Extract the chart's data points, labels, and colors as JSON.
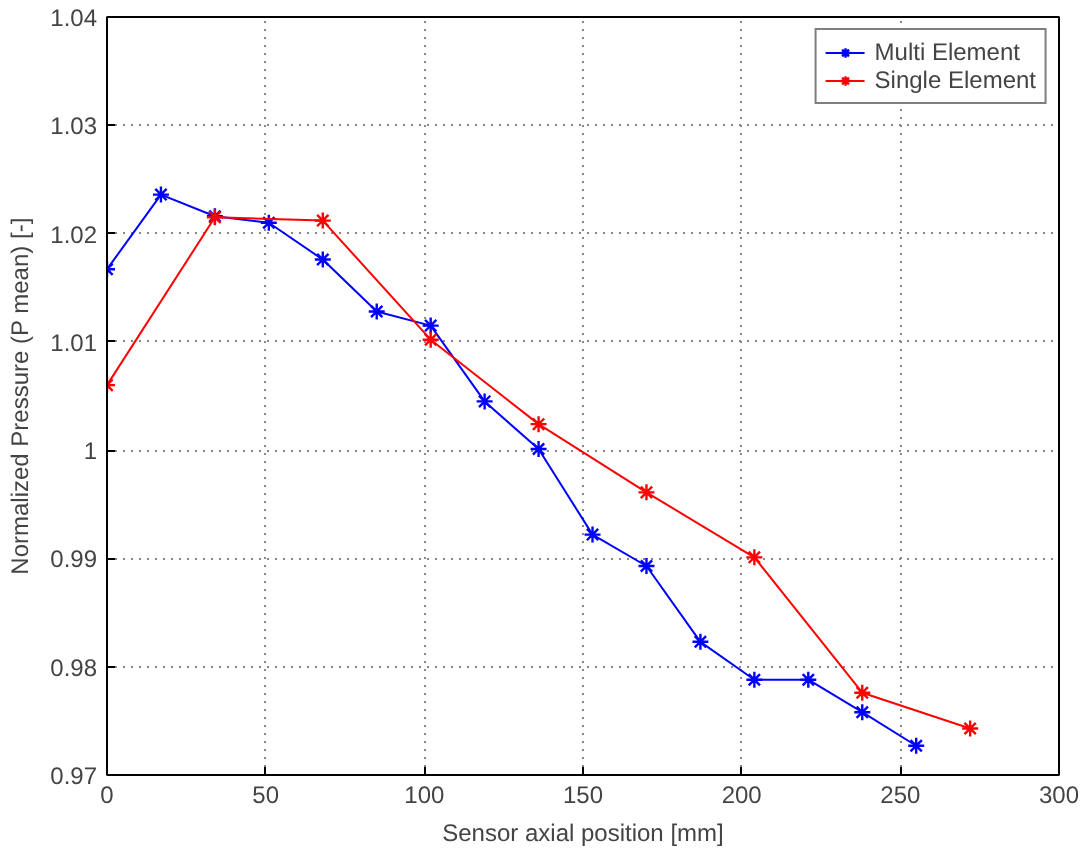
{
  "chart_data": {
    "type": "line",
    "xlabel": "Sensor axial position [mm]",
    "ylabel": "Normalized Pressure (P mean) [-]",
    "xlim": [
      0,
      300
    ],
    "xticks": [
      0,
      50,
      100,
      150,
      200,
      250,
      300
    ],
    "ylim": [
      0.97,
      1.04
    ],
    "yticks": [
      0.97,
      0.98,
      0.99,
      1,
      1.01,
      1.02,
      1.03,
      1.04
    ],
    "grid": true,
    "legend": "top right",
    "marker": "cross",
    "line_style": "solid",
    "series": [
      {
        "name": "Multi Element",
        "color": "#0000ff",
        "x": [
          0,
          17,
          34,
          51,
          68,
          85,
          102,
          119,
          136,
          153,
          170,
          187,
          204,
          221,
          238,
          255
        ],
        "values": [
          1.0167,
          1.0236,
          1.0216,
          1.021,
          1.0176,
          1.0128,
          1.0115,
          1.0045,
          1.0001,
          0.9922,
          0.9893,
          0.9823,
          0.9788,
          0.9788,
          0.9758,
          0.9727
        ]
      },
      {
        "name": "Single Element",
        "color": "#ff0000",
        "x": [
          0,
          34,
          68,
          102,
          136,
          170,
          204,
          238,
          272
        ],
        "values": [
          1.006,
          1.0215,
          1.0212,
          1.0102,
          1.0024,
          0.9961,
          0.9901,
          0.9776,
          0.9743
        ]
      }
    ]
  }
}
